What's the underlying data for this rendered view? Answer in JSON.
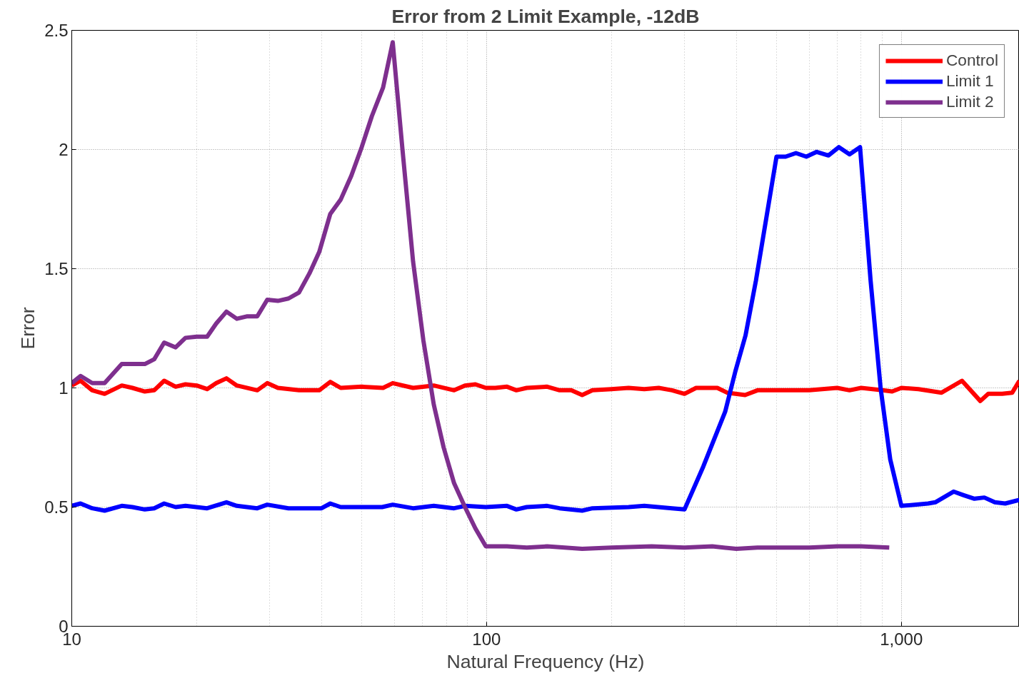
{
  "chart_data": {
    "type": "line",
    "title": "Error from 2 Limit Example, -12dB",
    "xlabel": "Natural Frequency (Hz)",
    "ylabel": "Error",
    "log": "x",
    "grid": true,
    "legend": "top right",
    "line_style": "solid",
    "marker": "none",
    "xlim": [
      10,
      1925
    ],
    "ylim": [
      0,
      2.5
    ],
    "xticks": [
      10,
      100,
      {
        "value": 1000,
        "label": "1,000"
      }
    ],
    "yticks": [
      0,
      0.5,
      1,
      1.5,
      2,
      2.5
    ],
    "series": [
      {
        "name": "Control",
        "color": "#ff0000",
        "x": [
          10,
          10.5,
          11.2,
          12,
          13.2,
          14,
          15,
          15.8,
          16.7,
          17.8,
          18.8,
          20,
          21.2,
          22.3,
          23.6,
          25,
          28,
          29.6,
          31.4,
          35.3,
          39.5,
          42,
          44.5,
          50,
          56.3,
          59.4,
          66.5,
          74.6,
          83.5,
          88.7,
          94,
          99.6,
          105,
          112,
          118,
          125,
          140,
          150,
          160,
          170,
          180,
          200,
          220,
          240,
          260,
          280,
          300,
          320,
          360,
          380,
          420,
          450,
          500,
          600,
          700,
          750,
          800,
          900,
          950,
          1000,
          1100,
          1250,
          1400,
          1550,
          1620,
          1750,
          1850,
          1925
        ],
        "values": [
          1.01,
          1.03,
          0.99,
          0.975,
          1.01,
          1.0,
          0.985,
          0.99,
          1.03,
          1.005,
          1.015,
          1.01,
          0.995,
          1.02,
          1.04,
          1.01,
          0.99,
          1.02,
          1.0,
          0.99,
          0.99,
          1.025,
          1.0,
          1.005,
          1.0,
          1.02,
          1.0,
          1.01,
          0.99,
          1.01,
          1.015,
          1.0,
          1.0,
          1.005,
          0.99,
          1.0,
          1.005,
          0.99,
          0.99,
          0.97,
          0.99,
          0.995,
          1.0,
          0.995,
          1.0,
          0.99,
          0.975,
          1.0,
          1.0,
          0.98,
          0.97,
          0.99,
          0.99,
          0.99,
          1.0,
          0.99,
          1.0,
          0.99,
          0.985,
          1.0,
          0.995,
          0.98,
          1.03,
          0.945,
          0.975,
          0.975,
          0.98,
          1.03
        ]
      },
      {
        "name": "Limit 1",
        "color": "#0000ff",
        "x": [
          10,
          10.5,
          11.2,
          12,
          13.2,
          14,
          15,
          15.8,
          16.7,
          17.8,
          18.8,
          21.2,
          23.6,
          25,
          28,
          29.6,
          33.3,
          40,
          42,
          44.5,
          56,
          59.4,
          66.5,
          74.6,
          83.5,
          88.7,
          99.6,
          112,
          118,
          125,
          140,
          150,
          170,
          180,
          220,
          240,
          280,
          300,
          333,
          376,
          398,
          421,
          446,
          500,
          526,
          557,
          590,
          625,
          667,
          707,
          750,
          795,
          843,
          891,
          940,
          1000,
          1160,
          1207,
          1336,
          1413,
          1500,
          1585,
          1680,
          1780,
          1925
        ],
        "values": [
          0.505,
          0.515,
          0.495,
          0.485,
          0.505,
          0.5,
          0.49,
          0.495,
          0.515,
          0.5,
          0.505,
          0.495,
          0.52,
          0.505,
          0.495,
          0.51,
          0.495,
          0.495,
          0.515,
          0.5,
          0.5,
          0.51,
          0.495,
          0.505,
          0.495,
          0.505,
          0.5,
          0.505,
          0.49,
          0.5,
          0.505,
          0.495,
          0.485,
          0.495,
          0.5,
          0.505,
          0.495,
          0.49,
          0.67,
          0.9,
          1.07,
          1.22,
          1.45,
          1.97,
          1.97,
          1.985,
          1.97,
          1.99,
          1.975,
          2.01,
          1.98,
          2.01,
          1.45,
          1.0,
          0.7,
          0.505,
          0.515,
          0.52,
          0.565,
          0.55,
          0.535,
          0.54,
          0.52,
          0.515,
          0.53
        ]
      },
      {
        "name": "Limit 2",
        "color": "#7e2f8e",
        "x": [
          10,
          10.5,
          11.2,
          12,
          13.2,
          14,
          15,
          15.8,
          16.7,
          17.8,
          18.8,
          20,
          21.2,
          22.3,
          23.6,
          25,
          26.4,
          28,
          29.6,
          31.4,
          33.3,
          35.3,
          37.4,
          39.5,
          42,
          44.5,
          47.2,
          50,
          52.9,
          56.3,
          59.4,
          62.7,
          66.5,
          70.4,
          74.6,
          78.8,
          83.5,
          88.7,
          94,
          99.6,
          112,
          125,
          140,
          170,
          200,
          250,
          300,
          350,
          400,
          450,
          500,
          600,
          700,
          800,
          935
        ],
        "values": [
          1.02,
          1.05,
          1.02,
          1.02,
          1.1,
          1.1,
          1.1,
          1.12,
          1.19,
          1.17,
          1.21,
          1.215,
          1.215,
          1.27,
          1.32,
          1.29,
          1.3,
          1.3,
          1.37,
          1.365,
          1.375,
          1.4,
          1.48,
          1.57,
          1.73,
          1.79,
          1.89,
          2.01,
          2.14,
          2.26,
          2.45,
          2.0,
          1.53,
          1.2,
          0.93,
          0.75,
          0.6,
          0.5,
          0.41,
          0.335,
          0.335,
          0.33,
          0.335,
          0.325,
          0.33,
          0.335,
          0.33,
          0.335,
          0.325,
          0.33,
          0.33,
          0.33,
          0.335,
          0.335,
          0.33
        ]
      }
    ]
  }
}
